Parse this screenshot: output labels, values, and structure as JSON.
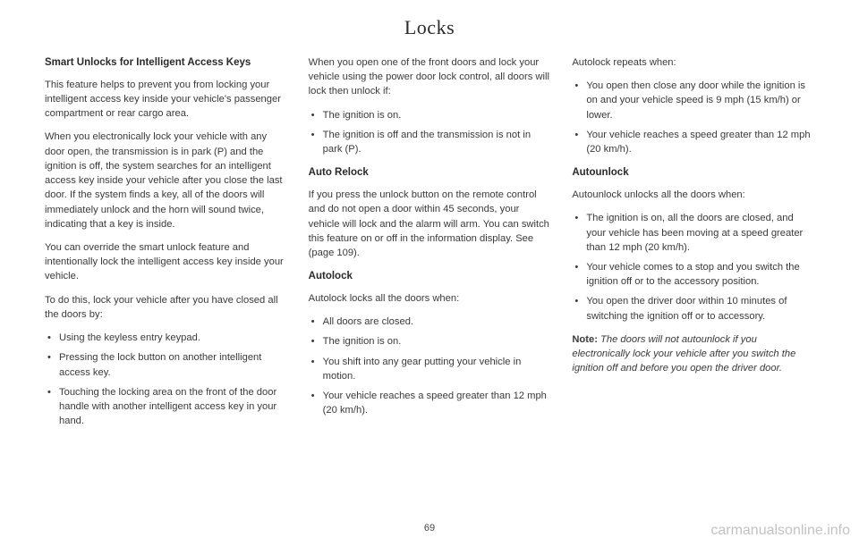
{
  "title": "Locks",
  "pageNumber": "69",
  "watermark": "carmanualsonline.info",
  "col1": {
    "h1": "Smart Unlocks for Intelligent Access Keys",
    "p1": "This feature helps to prevent you from locking your intelligent access key inside your vehicle's passenger compartment or rear cargo area.",
    "p2": "When you electronically lock your vehicle with any door open, the transmission is in park (P) and the ignition is off, the system searches for an intelligent access key inside your vehicle after you close the last door.  If the system finds a key, all of the doors will immediately unlock and the horn will sound twice, indicating that a key is inside.",
    "p3": "You can override the smart unlock feature and intentionally lock the intelligent access key inside your vehicle.",
    "p4": "To do this, lock your vehicle after you have closed all the doors by:",
    "l1": "Using the keyless entry keypad.",
    "l2": "Pressing the lock button on another intelligent access key.",
    "l3": "Touching the locking area on the front of the door handle with another intelligent access key in your hand."
  },
  "col2": {
    "p1": "When you open one of the front doors and lock your vehicle using the power door lock control, all doors will lock then unlock if:",
    "l1": "The ignition is on.",
    "l2": "The ignition is off and the transmission is not in park (P).",
    "h2": "Auto Relock",
    "p2": "If you press the unlock button on the remote control and do not open a door within 45 seconds, your vehicle will lock and the alarm will arm. You can switch this feature on or off in the information display.  See  (page 109).",
    "h3": "Autolock",
    "p3": "Autolock locks all the doors when:",
    "l3": "All doors are closed.",
    "l4": "The ignition is on.",
    "l5": "You shift into any gear putting your vehicle in motion.",
    "l6": "Your vehicle reaches a speed greater than 12 mph (20 km/h)."
  },
  "col3": {
    "p1": "Autolock repeats when:",
    "l1": "You open then close any door while the ignition is on and your vehicle speed is 9 mph (15 km/h) or lower.",
    "l2": "Your vehicle reaches a speed greater than 12 mph (20 km/h).",
    "h1": "Autounlock",
    "p2": "Autounlock unlocks all the doors when:",
    "l3": "The ignition is on, all the doors are closed, and your vehicle has been moving at a speed greater than 12 mph (20 km/h).",
    "l4": "Your vehicle comes to a stop and you switch the ignition off or to the accessory position.",
    "l5": "You open the driver door within 10 minutes of switching the ignition off or to accessory.",
    "noteLabel": "Note:",
    "noteBody": " The doors will not autounlock if you electronically lock your vehicle after you switch the ignition off and before you open the driver door."
  }
}
